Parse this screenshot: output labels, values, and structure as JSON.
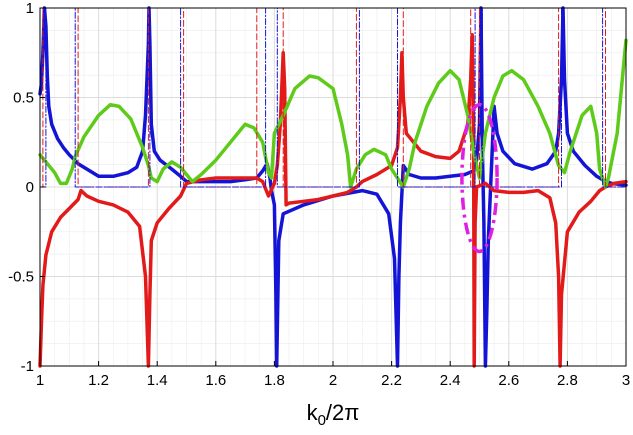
{
  "chart_data": {
    "type": "line",
    "xlabel": {
      "base": "k",
      "sub": "0",
      "rest": "/2π"
    },
    "xlim": [
      1,
      3
    ],
    "ylim": [
      -1,
      1
    ],
    "xticks": [
      1,
      1.2,
      1.4,
      1.6,
      1.8,
      2,
      2.2,
      2.4,
      2.6,
      2.8,
      3
    ],
    "xtick_labels": [
      "1",
      "1.2",
      "1.4",
      "1.6",
      "1.8",
      "2",
      "2.2",
      "2.4",
      "2.6",
      "2.8",
      "3"
    ],
    "yticks": [
      -1,
      -0.5,
      0,
      0.5,
      1
    ],
    "ytick_labels": [
      "-1",
      "-0.5",
      "0",
      "0.5",
      "1"
    ],
    "grid": true,
    "colors": {
      "blue": "#1414d6",
      "red": "#e31a1a",
      "green": "#5ecb1a",
      "magenta": "#e020e0",
      "grid": "#dcdcdc"
    },
    "series": [
      {
        "color": "blue",
        "style": "solid",
        "points": [
          [
            1.0,
            0.52
          ],
          [
            1.005,
            0.58
          ],
          [
            1.01,
            0.75
          ],
          [
            1.015,
            1.0
          ],
          [
            1.02,
            0.9
          ],
          [
            1.025,
            0.62
          ],
          [
            1.03,
            0.45
          ],
          [
            1.04,
            0.35
          ],
          [
            1.06,
            0.27
          ],
          [
            1.08,
            0.22
          ],
          [
            1.1,
            0.18
          ],
          [
            1.13,
            0.13
          ],
          [
            1.16,
            0.1
          ],
          [
            1.2,
            0.06
          ],
          [
            1.25,
            0.06
          ],
          [
            1.3,
            0.08
          ],
          [
            1.33,
            0.11
          ],
          [
            1.35,
            0.2
          ],
          [
            1.36,
            0.4
          ],
          [
            1.37,
            0.8
          ],
          [
            1.372,
            1.0
          ],
          [
            1.375,
            0.8
          ],
          [
            1.38,
            0.35
          ],
          [
            1.39,
            0.2
          ],
          [
            1.41,
            0.15
          ],
          [
            1.45,
            0.1
          ],
          [
            1.48,
            0.06
          ],
          [
            1.5,
            0.03
          ],
          [
            1.55,
            0.03
          ],
          [
            1.6,
            0.03
          ],
          [
            1.65,
            0.03
          ],
          [
            1.7,
            0.04
          ],
          [
            1.74,
            0.05
          ],
          [
            1.76,
            0.09
          ],
          [
            1.775,
            0.13
          ],
          [
            1.785,
            0.05
          ],
          [
            1.79,
            -0.02
          ],
          [
            1.8,
            -0.1
          ],
          [
            1.805,
            -0.6
          ],
          [
            1.808,
            -1.0
          ],
          [
            1.812,
            -0.6
          ],
          [
            1.815,
            -0.3
          ],
          [
            1.83,
            -0.15
          ],
          [
            1.9,
            -0.1
          ],
          [
            2.0,
            -0.05
          ],
          [
            2.1,
            -0.02
          ],
          [
            2.15,
            -0.04
          ],
          [
            2.19,
            -0.15
          ],
          [
            2.21,
            -0.4
          ],
          [
            2.22,
            -1.0
          ],
          [
            2.225,
            -0.5
          ],
          [
            2.23,
            -0.2
          ],
          [
            2.24,
            0.12
          ],
          [
            2.26,
            0.07
          ],
          [
            2.3,
            0.05
          ],
          [
            2.35,
            0.05
          ],
          [
            2.4,
            0.06
          ],
          [
            2.45,
            0.07
          ],
          [
            2.48,
            0.09
          ],
          [
            2.49,
            0.15
          ],
          [
            2.5,
            0.35
          ],
          [
            2.505,
            1.0
          ],
          [
            2.51,
            0.2
          ],
          [
            2.515,
            -0.2
          ],
          [
            2.52,
            -1.0
          ],
          [
            2.525,
            -0.7
          ],
          [
            2.53,
            -0.3
          ],
          [
            2.55,
            0.45
          ],
          [
            2.56,
            0.3
          ],
          [
            2.58,
            0.2
          ],
          [
            2.62,
            0.13
          ],
          [
            2.68,
            0.1
          ],
          [
            2.73,
            0.13
          ],
          [
            2.76,
            0.2
          ],
          [
            2.77,
            0.3
          ],
          [
            2.78,
            0.6
          ],
          [
            2.785,
            1.0
          ],
          [
            2.79,
            0.6
          ],
          [
            2.8,
            0.3
          ],
          [
            2.82,
            0.2
          ],
          [
            2.86,
            0.12
          ],
          [
            2.9,
            0.06
          ],
          [
            2.92,
            0.04
          ],
          [
            2.95,
            0.02
          ],
          [
            3.0,
            0.01
          ]
        ]
      },
      {
        "color": "red",
        "style": "solid",
        "points": [
          [
            1.0,
            -1.0
          ],
          [
            1.005,
            -0.75
          ],
          [
            1.01,
            -0.55
          ],
          [
            1.02,
            -0.38
          ],
          [
            1.04,
            -0.25
          ],
          [
            1.07,
            -0.17
          ],
          [
            1.1,
            -0.12
          ],
          [
            1.13,
            -0.07
          ],
          [
            1.14,
            -0.02
          ],
          [
            1.16,
            -0.05
          ],
          [
            1.2,
            -0.08
          ],
          [
            1.25,
            -0.1
          ],
          [
            1.3,
            -0.14
          ],
          [
            1.34,
            -0.22
          ],
          [
            1.36,
            -0.5
          ],
          [
            1.37,
            -1.0
          ],
          [
            1.375,
            -0.6
          ],
          [
            1.38,
            -0.3
          ],
          [
            1.4,
            -0.2
          ],
          [
            1.44,
            -0.12
          ],
          [
            1.48,
            -0.05
          ],
          [
            1.5,
            0.02
          ],
          [
            1.55,
            0.04
          ],
          [
            1.6,
            0.05
          ],
          [
            1.65,
            0.05
          ],
          [
            1.7,
            0.05
          ],
          [
            1.74,
            0.05
          ],
          [
            1.76,
            0.03
          ],
          [
            1.78,
            -0.05
          ],
          [
            1.8,
            0.02
          ],
          [
            1.81,
            0.12
          ],
          [
            1.82,
            0.35
          ],
          [
            1.83,
            0.75
          ],
          [
            1.835,
            0.55
          ],
          [
            1.84,
            -0.1
          ],
          [
            1.85,
            -0.09
          ],
          [
            1.9,
            -0.08
          ],
          [
            1.95,
            -0.07
          ],
          [
            2.0,
            -0.05
          ],
          [
            2.05,
            -0.03
          ],
          [
            2.08,
            0.0
          ],
          [
            2.1,
            0.03
          ],
          [
            2.15,
            0.07
          ],
          [
            2.2,
            0.12
          ],
          [
            2.22,
            0.22
          ],
          [
            2.23,
            0.5
          ],
          [
            2.235,
            0.75
          ],
          [
            2.24,
            0.5
          ],
          [
            2.25,
            0.3
          ],
          [
            2.3,
            0.2
          ],
          [
            2.35,
            0.17
          ],
          [
            2.4,
            0.16
          ],
          [
            2.43,
            0.2
          ],
          [
            2.46,
            0.35
          ],
          [
            2.47,
            0.6
          ],
          [
            2.475,
            0.85
          ],
          [
            2.48,
            0.3
          ],
          [
            2.482,
            -1.0
          ],
          [
            2.485,
            -0.2
          ],
          [
            2.49,
            0.0
          ],
          [
            2.52,
            0.02
          ],
          [
            2.55,
            -0.02
          ],
          [
            2.6,
            -0.03
          ],
          [
            2.65,
            -0.03
          ],
          [
            2.7,
            -0.02
          ],
          [
            2.74,
            -0.06
          ],
          [
            2.76,
            -0.2
          ],
          [
            2.77,
            -0.5
          ],
          [
            2.775,
            -1.0
          ],
          [
            2.78,
            -0.6
          ],
          [
            2.8,
            -0.25
          ],
          [
            2.84,
            -0.14
          ],
          [
            2.88,
            -0.08
          ],
          [
            2.91,
            -0.02
          ],
          [
            2.93,
            0.0
          ],
          [
            2.96,
            0.02
          ],
          [
            3.0,
            0.03
          ]
        ]
      },
      {
        "color": "green",
        "style": "solid",
        "points": [
          [
            1.0,
            0.18
          ],
          [
            1.02,
            0.14
          ],
          [
            1.05,
            0.08
          ],
          [
            1.07,
            0.02
          ],
          [
            1.09,
            0.02
          ],
          [
            1.11,
            0.1
          ],
          [
            1.12,
            0.17
          ],
          [
            1.15,
            0.28
          ],
          [
            1.2,
            0.4
          ],
          [
            1.24,
            0.46
          ],
          [
            1.27,
            0.45
          ],
          [
            1.31,
            0.38
          ],
          [
            1.35,
            0.22
          ],
          [
            1.37,
            0.12
          ],
          [
            1.38,
            0.05
          ],
          [
            1.4,
            0.03
          ],
          [
            1.42,
            0.1
          ],
          [
            1.45,
            0.14
          ],
          [
            1.48,
            0.11
          ],
          [
            1.5,
            0.07
          ],
          [
            1.52,
            0.03
          ],
          [
            1.55,
            0.07
          ],
          [
            1.6,
            0.15
          ],
          [
            1.65,
            0.25
          ],
          [
            1.7,
            0.35
          ],
          [
            1.73,
            0.33
          ],
          [
            1.76,
            0.25
          ],
          [
            1.78,
            0.08
          ],
          [
            1.79,
            0.05
          ],
          [
            1.8,
            0.3
          ],
          [
            1.83,
            0.4
          ],
          [
            1.87,
            0.55
          ],
          [
            1.92,
            0.62
          ],
          [
            1.95,
            0.61
          ],
          [
            2.0,
            0.55
          ],
          [
            2.03,
            0.35
          ],
          [
            2.05,
            0.18
          ],
          [
            2.06,
            0.0
          ],
          [
            2.08,
            0.1
          ],
          [
            2.11,
            0.18
          ],
          [
            2.14,
            0.21
          ],
          [
            2.18,
            0.18
          ],
          [
            2.2,
            0.1
          ],
          [
            2.24,
            0.0
          ],
          [
            2.26,
            0.1
          ],
          [
            2.28,
            0.25
          ],
          [
            2.32,
            0.45
          ],
          [
            2.36,
            0.58
          ],
          [
            2.4,
            0.65
          ],
          [
            2.43,
            0.6
          ],
          [
            2.46,
            0.4
          ],
          [
            2.48,
            0.2
          ],
          [
            2.5,
            0.05
          ],
          [
            2.52,
            0.3
          ],
          [
            2.55,
            0.5
          ],
          [
            2.58,
            0.62
          ],
          [
            2.61,
            0.65
          ],
          [
            2.65,
            0.6
          ],
          [
            2.7,
            0.45
          ],
          [
            2.74,
            0.3
          ],
          [
            2.77,
            0.12
          ],
          [
            2.79,
            0.08
          ],
          [
            2.81,
            0.2
          ],
          [
            2.85,
            0.4
          ],
          [
            2.88,
            0.45
          ],
          [
            2.9,
            0.3
          ],
          [
            2.91,
            0.1
          ],
          [
            2.93,
            0.0
          ],
          [
            2.94,
            0.05
          ],
          [
            2.97,
            0.3
          ],
          [
            3.0,
            0.82
          ]
        ]
      },
      {
        "color": "red",
        "style": "dashed",
        "points": [
          [
            1.0,
            0.0
          ],
          [
            1.01,
            0.0
          ],
          [
            1.01,
            1.0
          ],
          [
            1.13,
            1.0
          ],
          [
            1.13,
            0.0
          ],
          [
            1.37,
            0.0
          ],
          [
            1.37,
            1.0
          ],
          [
            1.49,
            1.0
          ],
          [
            1.49,
            0.0
          ],
          [
            1.74,
            0.0
          ],
          [
            1.74,
            1.0
          ],
          [
            1.83,
            1.0
          ],
          [
            1.83,
            0.0
          ],
          [
            2.08,
            0.0
          ],
          [
            2.08,
            1.0
          ],
          [
            2.24,
            1.0
          ],
          [
            2.24,
            0.0
          ],
          [
            2.47,
            0.0
          ],
          [
            2.47,
            1.0
          ],
          [
            2.5,
            1.0
          ],
          [
            2.5,
            0.0
          ],
          [
            2.77,
            0.0
          ],
          [
            2.77,
            1.0
          ],
          [
            2.93,
            1.0
          ],
          [
            2.93,
            0.0
          ],
          [
            3.0,
            0.0
          ]
        ]
      },
      {
        "color": "blue",
        "style": "dashdot",
        "points": [
          [
            1.0,
            0.0
          ],
          [
            1.02,
            0.0
          ],
          [
            1.02,
            1.0
          ],
          [
            1.12,
            1.0
          ],
          [
            1.12,
            0.0
          ],
          [
            1.375,
            0.0
          ],
          [
            1.375,
            1.0
          ],
          [
            1.48,
            1.0
          ],
          [
            1.48,
            0.0
          ],
          [
            1.77,
            0.0
          ],
          [
            1.77,
            1.0
          ],
          [
            1.81,
            1.0
          ],
          [
            1.81,
            0.0
          ],
          [
            2.09,
            0.0
          ],
          [
            2.09,
            1.0
          ],
          [
            2.22,
            1.0
          ],
          [
            2.22,
            0.0
          ],
          [
            2.485,
            0.0
          ],
          [
            2.485,
            1.0
          ],
          [
            2.51,
            1.0
          ],
          [
            2.51,
            0.0
          ],
          [
            2.78,
            0.0
          ],
          [
            2.78,
            1.0
          ],
          [
            2.92,
            1.0
          ],
          [
            2.92,
            0.0
          ],
          [
            3.0,
            0.0
          ]
        ]
      }
    ],
    "annotations": [
      {
        "type": "ellipse",
        "color": "magenta",
        "style": "dashdot",
        "center": [
          2.5,
          0.05
        ],
        "rx": 0.06,
        "ry": 0.41
      }
    ]
  }
}
